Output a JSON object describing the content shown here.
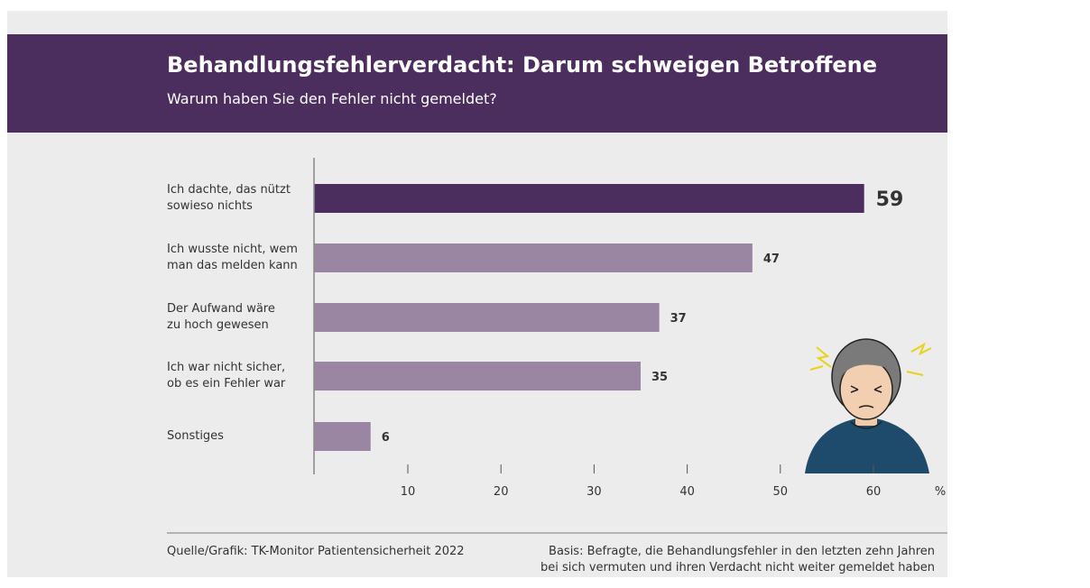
{
  "chart_data": {
    "type": "bar",
    "orientation": "horizontal",
    "title": "Behandlungsfehlerverdacht: Darum schweigen Betroffene",
    "subtitle": "Warum haben Sie den Fehler nicht gemeldet?",
    "categories": [
      "Ich dachte, das nützt\nsowieso nichts",
      "Ich wusste nicht, wem\nman das melden kann",
      "Der Aufwand wäre\nzu hoch gewesen",
      "Ich war nicht sicher,\nob es ein Fehler war",
      "Sonstiges"
    ],
    "values": [
      59,
      47,
      37,
      35,
      6
    ],
    "colors": [
      "#4b2d5e",
      "#9a86a2",
      "#9a86a2",
      "#9a86a2",
      "#9a86a2"
    ],
    "xlim": [
      0,
      67
    ],
    "xticks": [
      10,
      20,
      30,
      40,
      50,
      60
    ],
    "xlabel": "%",
    "source": "Quelle/Grafik: TK-Monitor Patientensicherheit 2022",
    "note": "Basis: Befragte, die Behandlungsfehler in den letzten zehn Jahren\nbei sich vermuten und ihren Verdacht nicht weiter gemeldet haben"
  }
}
